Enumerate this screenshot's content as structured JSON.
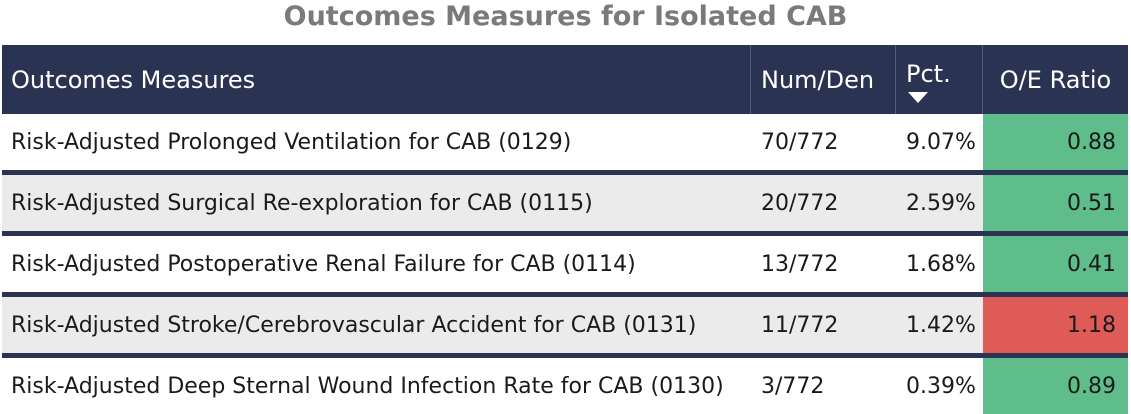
{
  "title": "Outcomes Measures for Isolated CAB",
  "header": {
    "measure": "Outcomes Measures",
    "num_den": "Num/Den",
    "pct": "Pct.",
    "oe_ratio": "O/E Ratio"
  },
  "rows": [
    {
      "measure": "Risk-Adjusted Prolonged Ventilation for CAB (0129)",
      "num_den": "70/772",
      "pct": "9.07%",
      "oe_ratio": "0.88",
      "status": "good"
    },
    {
      "measure": "Risk-Adjusted Surgical Re-exploration for CAB (0115)",
      "num_den": "20/772",
      "pct": "2.59%",
      "oe_ratio": "0.51",
      "status": "good"
    },
    {
      "measure": "Risk-Adjusted Postoperative Renal Failure for CAB (0114)",
      "num_den": "13/772",
      "pct": "1.68%",
      "oe_ratio": "0.41",
      "status": "good"
    },
    {
      "measure": "Risk-Adjusted Stroke/Cerebrovascular Accident for CAB (0131)",
      "num_den": "11/772",
      "pct": "1.42%",
      "oe_ratio": "1.18",
      "status": "bad"
    },
    {
      "measure": "Risk-Adjusted Deep Sternal Wound Infection Rate for CAB (0130)",
      "num_den": "3/772",
      "pct": "0.39%",
      "oe_ratio": "0.89",
      "status": "good"
    }
  ],
  "colors": {
    "header_bg": "#2a3352",
    "good": "#5ebd8a",
    "bad": "#de5b57",
    "title": "#7a7a7a"
  },
  "icons": {
    "sort": "sort-descending-icon"
  }
}
